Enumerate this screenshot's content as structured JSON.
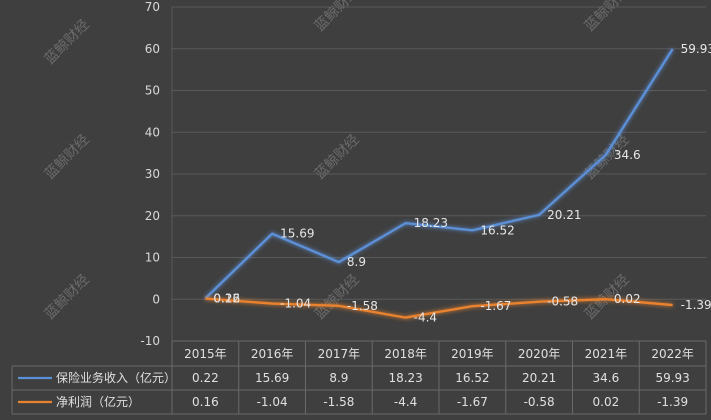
{
  "chart_data": {
    "type": "line",
    "categories": [
      "2015年",
      "2016年",
      "2017年",
      "2018年",
      "2019年",
      "2020年",
      "2021年",
      "2022年"
    ],
    "series": [
      {
        "name": "保险业务收入（亿元）",
        "values": [
          0.22,
          15.69,
          8.9,
          18.23,
          16.52,
          20.21,
          34.6,
          59.93
        ],
        "labels": [
          "0.22",
          "15.69",
          "8.9",
          "18.23",
          "16.52",
          "20.21",
          "34.6",
          "59.93"
        ],
        "color": "#5b8fd6"
      },
      {
        "name": "净利润（亿元）",
        "values": [
          0.16,
          -1.04,
          -1.58,
          -4.4,
          -1.67,
          -0.58,
          0.02,
          -1.39
        ],
        "labels": [
          "0.16",
          "-1.04",
          "-1.58",
          "-4.4",
          "-1.67",
          "-0.58",
          "0.02",
          "-1.39"
        ],
        "color": "#e8822e"
      }
    ],
    "ylim": [
      -10,
      70
    ],
    "yticks": [
      "-10",
      "0",
      "10",
      "20",
      "30",
      "40",
      "50",
      "60",
      "70"
    ],
    "grid": true,
    "legend": "data-table-below"
  },
  "watermark": "蓝鲸财经"
}
